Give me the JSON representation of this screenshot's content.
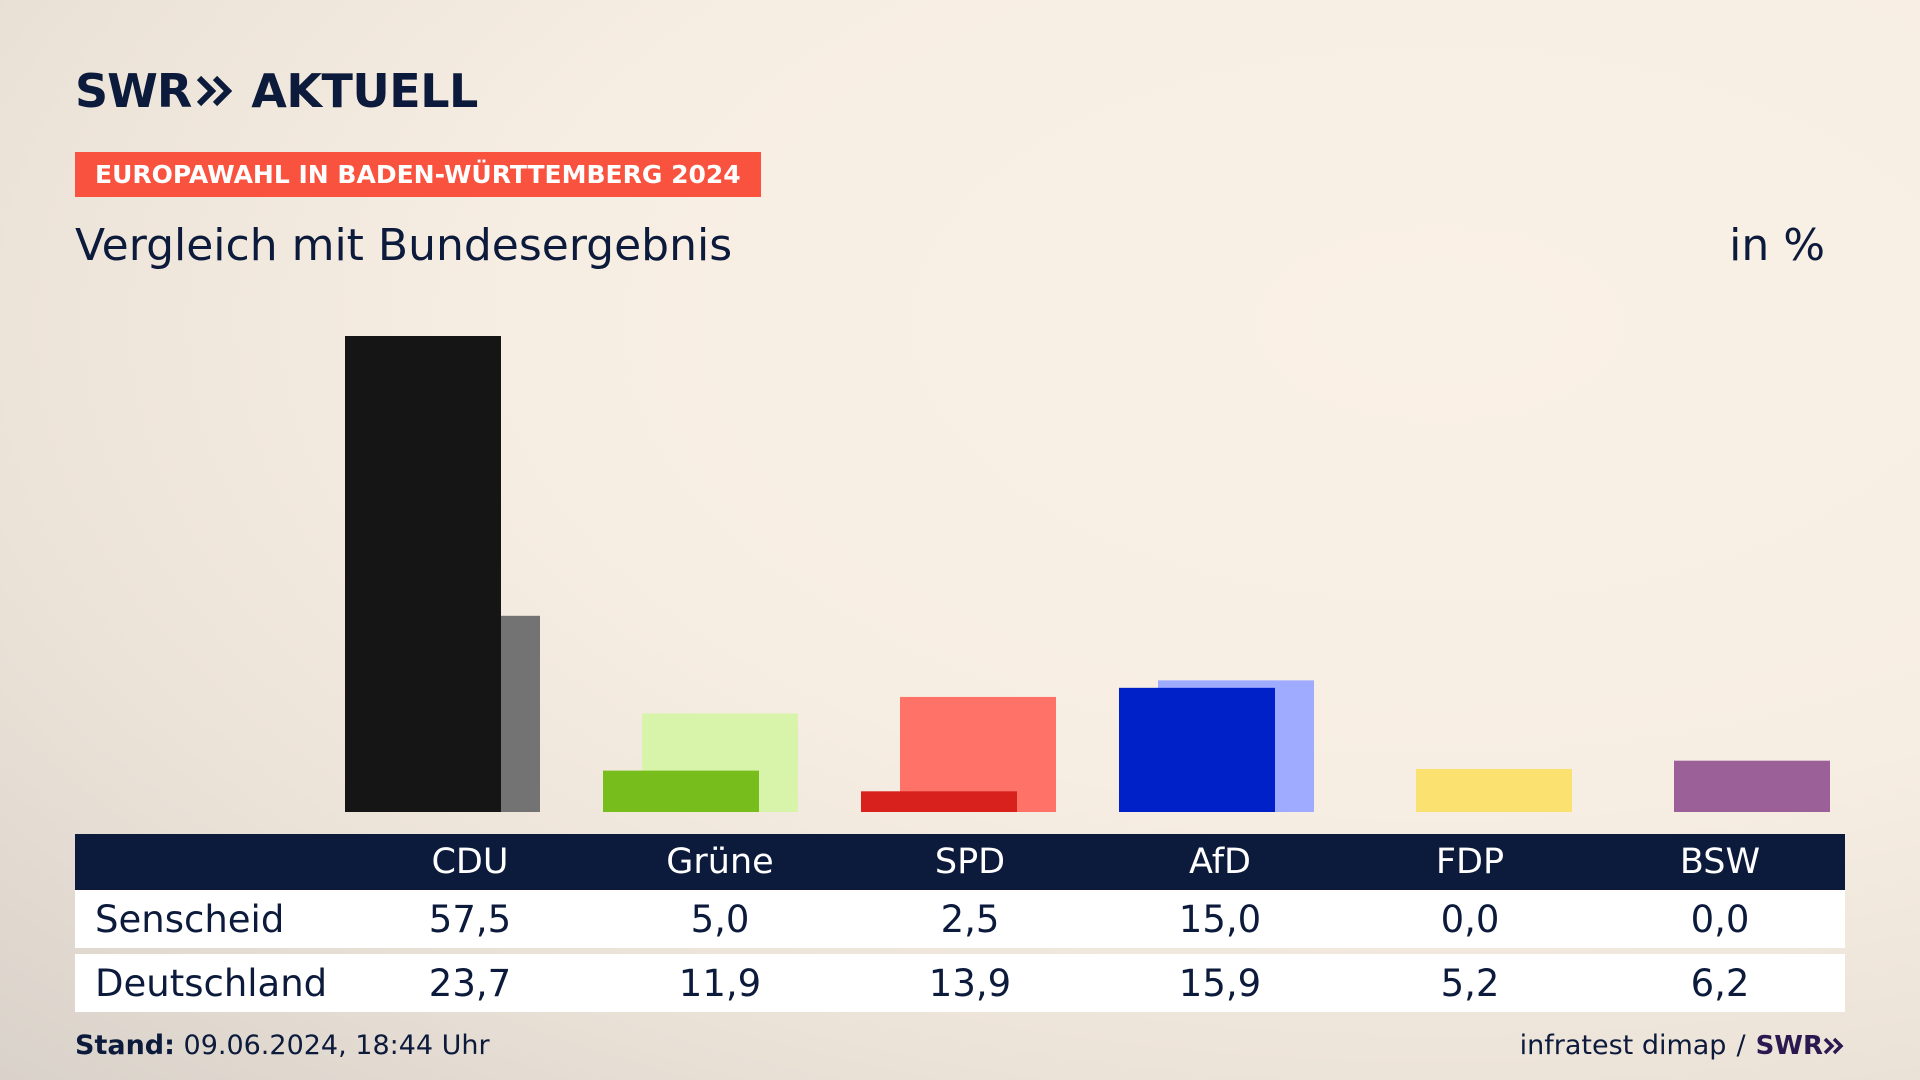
{
  "brand": {
    "logo_swr": "SWR",
    "logo_word": "AKTUELL",
    "logo_icon": "double-chevron-icon"
  },
  "badge": "EUROPAWAHL IN BADEN-WÜRTTEMBERG 2024",
  "subtitle": "Vergleich mit Bundesergebnis",
  "unit": "in %",
  "table": {
    "headers": [
      "CDU",
      "Grüne",
      "SPD",
      "AfD",
      "FDP",
      "BSW"
    ],
    "rows": [
      {
        "label": "Senscheid",
        "values": [
          "57,5",
          "5,0",
          "2,5",
          "15,0",
          "0,0",
          "0,0"
        ]
      },
      {
        "label": "Deutschland",
        "values": [
          "23,7",
          "11,9",
          "13,9",
          "15,9",
          "5,2",
          "6,2"
        ]
      }
    ]
  },
  "footer": {
    "stand_label": "Stand:",
    "stand_value": "09.06.2024, 18:44 Uhr",
    "source": "infratest dimap",
    "separator": "/",
    "source_logo": "SWR"
  },
  "colors": {
    "CDU": {
      "main": "#151515",
      "light": "#737373"
    },
    "Grüne": {
      "main": "#77bd1c",
      "light": "#d7f4aa"
    },
    "SPD": {
      "main": "#d8211d",
      "light": "#ff7268"
    },
    "AfD": {
      "main": "#0020c8",
      "light": "#9fabff"
    },
    "FDP": {
      "main": "#f5d400",
      "light": "#fbe170"
    },
    "BSW": {
      "main": "#7a2a7c",
      "light": "#9b6098"
    },
    "badge": "#f9533f",
    "navy": "#0c1a3b"
  },
  "chart_data": {
    "type": "bar",
    "categories": [
      "CDU",
      "Grüne",
      "SPD",
      "AfD",
      "FDP",
      "BSW"
    ],
    "series": [
      {
        "name": "Senscheid",
        "values": [
          57.5,
          5.0,
          2.5,
          15.0,
          0.0,
          0.0
        ]
      },
      {
        "name": "Deutschland",
        "values": [
          23.7,
          11.9,
          13.9,
          15.9,
          5.2,
          6.2
        ]
      }
    ],
    "title": "Vergleich mit Bundesergebnis",
    "ylabel": "in %",
    "ylim": [
      0,
      57.5
    ],
    "grid": false,
    "legend": "table below chart"
  }
}
